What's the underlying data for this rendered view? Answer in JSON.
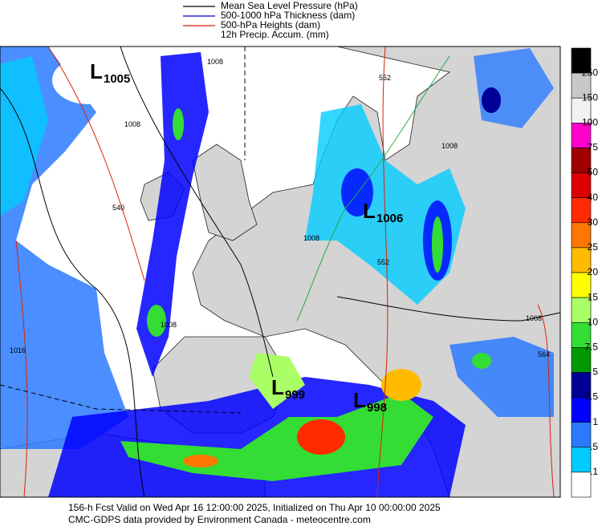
{
  "legend": {
    "items": [
      {
        "label": "Mean Sea Level Pressure (hPa)",
        "color": "#000000"
      },
      {
        "label": "500-1000 hPa Thickness (dam)",
        "color": "#0000cc"
      },
      {
        "label": "500-hPa Heights (dam)",
        "color": "#dd2200"
      },
      {
        "label": "12h Precip. Accum. (mm)",
        "color": null
      }
    ]
  },
  "colorbar": {
    "labels": [
      "250",
      "150",
      "100",
      "75",
      "50",
      "40",
      "30",
      "25",
      "20",
      "15",
      "10",
      "7.5",
      "5",
      "2.5",
      "1",
      ".5",
      ".1"
    ],
    "colors": [
      "#000000",
      "#c8c8c8",
      "#f2f2f2",
      "#ff00cc",
      "#a00000",
      "#dd0000",
      "#ff2a00",
      "#ff7700",
      "#ffbb00",
      "#ffff00",
      "#aaff66",
      "#33dd33",
      "#009900",
      "#000099",
      "#0000ff",
      "#2a7aff",
      "#00ccff",
      "#ffffff"
    ]
  },
  "map": {
    "lows": [
      {
        "letter": "L",
        "value": "1005"
      },
      {
        "letter": "L",
        "value": "1006"
      },
      {
        "letter": "L",
        "value": "999"
      },
      {
        "letter": "L",
        "value": "998"
      }
    ],
    "contour_labels": [
      "1008",
      "540",
      "1008",
      "1008",
      "1016",
      "552",
      "552",
      "1008",
      "564",
      "1008",
      "1008"
    ]
  },
  "footer": {
    "line1": "156-h Fcst Valid on Wed Apr 16 12:00:00 2025, Initialized on Thu Apr 10 00:00:00 2025",
    "line2": "CMC-GDPS data provided by Environment Canada - meteocentre.com"
  }
}
